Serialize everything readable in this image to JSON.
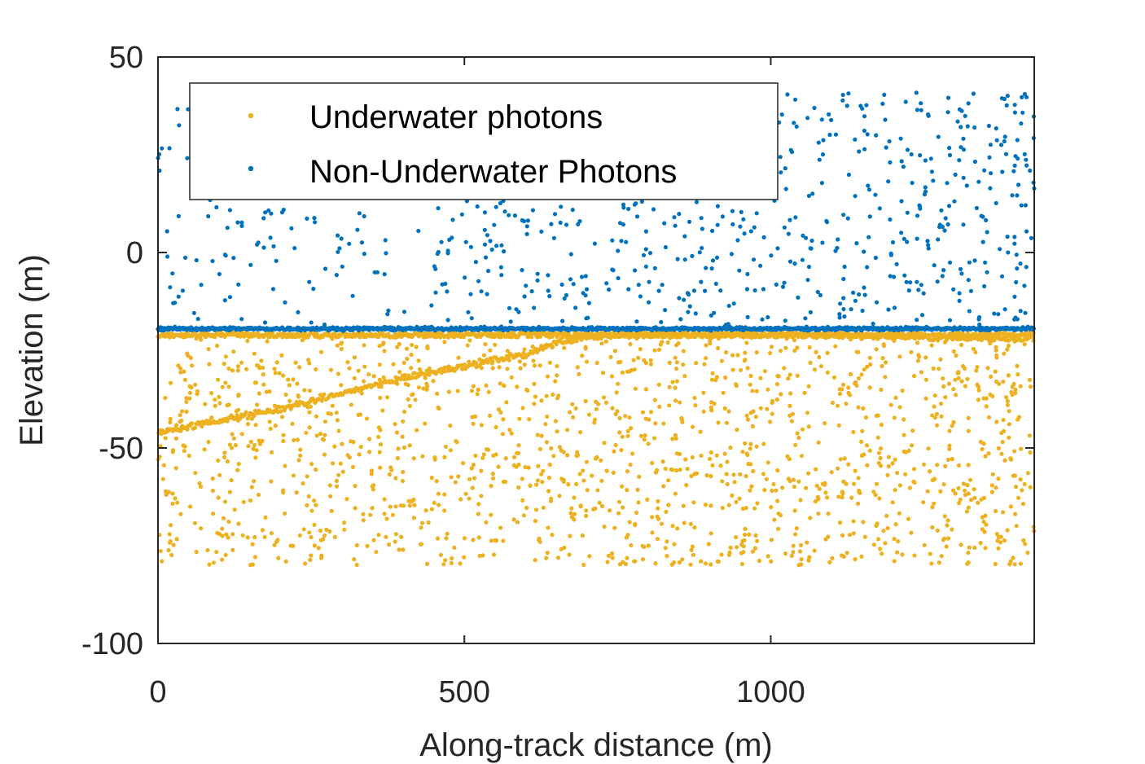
{
  "chart_data": {
    "type": "scatter",
    "title": "",
    "xlabel": "Along-track distance (m)",
    "ylabel": "Elevation (m)",
    "xlim": [
      0,
      1430
    ],
    "ylim": [
      -100,
      50
    ],
    "xticks": [
      0,
      500,
      1000
    ],
    "yticks": [
      -100,
      -50,
      0,
      50
    ],
    "xtick_labels": [
      "0",
      "500",
      "1000"
    ],
    "ytick_labels": [
      "-100",
      "-50",
      "0",
      "50"
    ],
    "grid": false,
    "legend_position": "top-left",
    "series": [
      {
        "name": "Underwater photons",
        "color": "#EDB120",
        "marker": "dot",
        "description_points": {
          "water_surface_elevation": -20.5,
          "seafloor_profile": [
            [
              0,
              -46
            ],
            [
              100,
              -43
            ],
            [
              200,
              -40
            ],
            [
              300,
              -36
            ],
            [
              400,
              -32
            ],
            [
              500,
              -29
            ],
            [
              600,
              -26
            ],
            [
              650,
              -23
            ],
            [
              700,
              -21.5
            ],
            [
              800,
              -21
            ],
            [
              1000,
              -21
            ],
            [
              1200,
              -21.5
            ],
            [
              1300,
              -22
            ],
            [
              1400,
              -22
            ]
          ],
          "noise_range_y": [
            -80,
            -20.5
          ],
          "noise_range_x": [
            0,
            1430
          ]
        }
      },
      {
        "name": "Non-Underwater Photons",
        "color": "#0072BD",
        "marker": "dot",
        "description_points": {
          "surface_line_elevation": -19.5,
          "noise_range_y": [
            -19.5,
            41
          ],
          "noise_range_x": [
            0,
            1430
          ]
        }
      }
    ]
  }
}
